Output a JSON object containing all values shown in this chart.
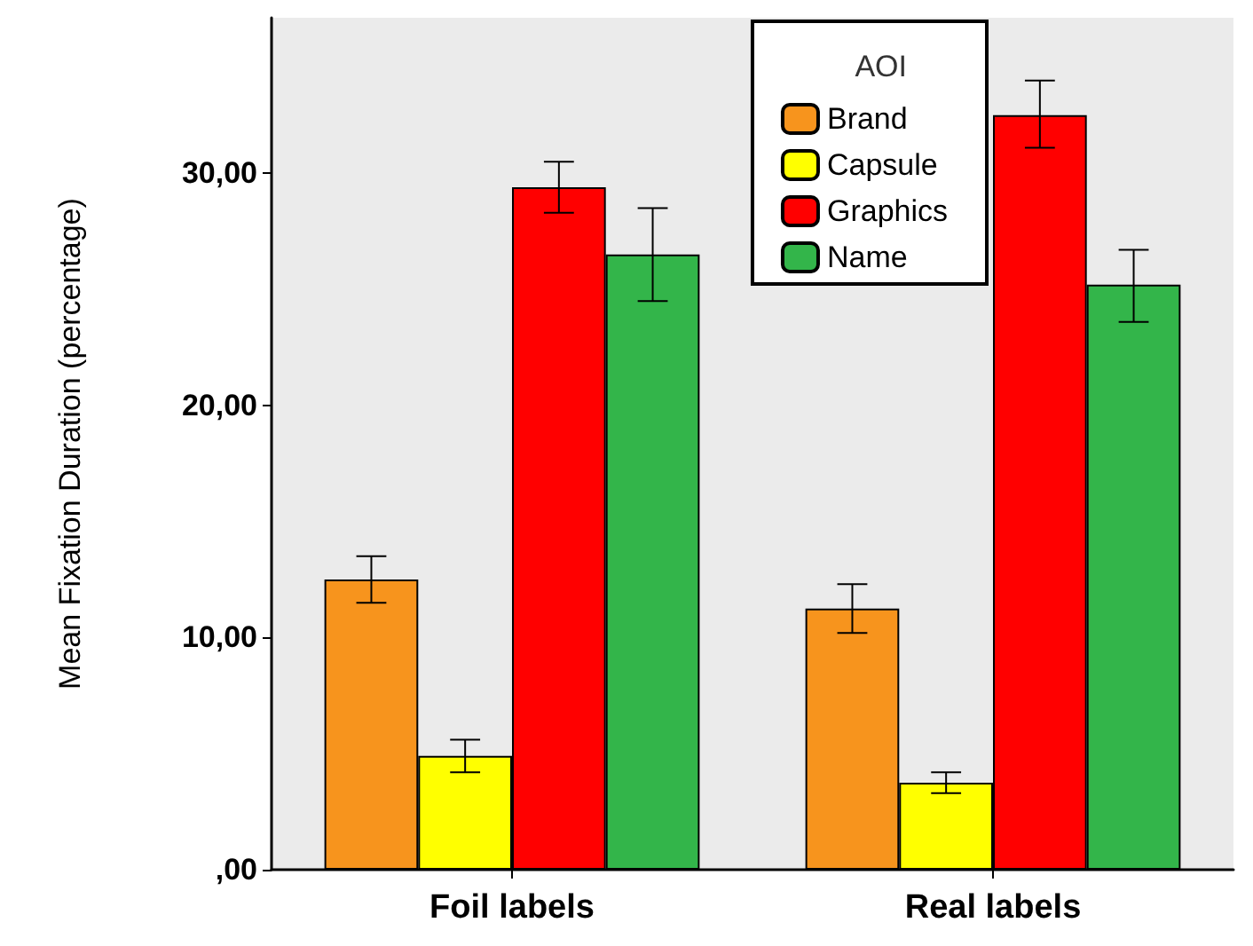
{
  "chart_data": {
    "type": "bar",
    "categories": [
      "Foil labels",
      "Real labels"
    ],
    "ylabel": "Mean Fixation Duration (percentage)",
    "legend_title": "AOI",
    "legend": "top right",
    "grid": false,
    "ylim": [
      0,
      36.7
    ],
    "yticks": [
      {
        "value": 0,
        "label": ",00"
      },
      {
        "value": 10,
        "label": "10,00"
      },
      {
        "value": 20,
        "label": "20,00"
      },
      {
        "value": 30,
        "label": "30,00"
      }
    ],
    "series": [
      {
        "name": "Brand",
        "color": "#f7941d",
        "values": [
          12.5,
          11.25
        ],
        "errors": [
          [
            11.5,
            13.5
          ],
          [
            10.2,
            12.3
          ]
        ]
      },
      {
        "name": "Capsule",
        "color": "#ffff00",
        "values": [
          4.9,
          3.75
        ],
        "errors": [
          [
            4.2,
            5.6
          ],
          [
            3.3,
            4.2
          ]
        ]
      },
      {
        "name": "Graphics",
        "color": "#ff0000",
        "values": [
          29.4,
          32.5
        ],
        "errors": [
          [
            28.3,
            30.5
          ],
          [
            31.1,
            34.0
          ]
        ]
      },
      {
        "name": "Name",
        "color": "#33b54a",
        "values": [
          26.5,
          25.2
        ],
        "errors": [
          [
            24.5,
            28.5
          ],
          [
            23.6,
            26.7
          ]
        ]
      }
    ]
  }
}
